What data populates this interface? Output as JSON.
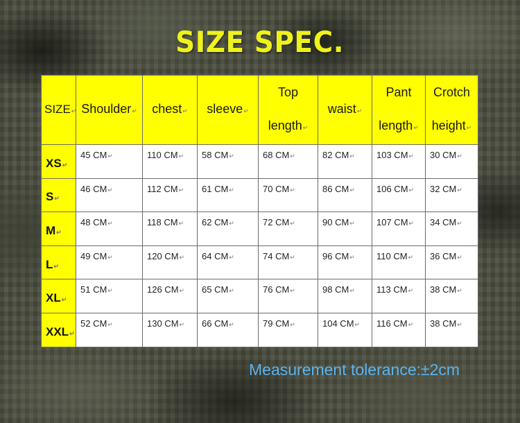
{
  "title": "SIZE SPEC.",
  "columns": [
    {
      "line1": "SIZE",
      "line2": ""
    },
    {
      "line1": "Shoulder",
      "line2": ""
    },
    {
      "line1": "chest",
      "line2": ""
    },
    {
      "line1": "sleeve",
      "line2": ""
    },
    {
      "line1": "Top",
      "line2": "length"
    },
    {
      "line1": "waist",
      "line2": ""
    },
    {
      "line1": "Pant",
      "line2": "length"
    },
    {
      "line1": "Crotch",
      "line2": "height"
    }
  ],
  "rows": [
    {
      "size": "XS",
      "values": [
        "45 CM",
        "110 CM",
        "58 CM",
        "68 CM",
        "82 CM",
        "103 CM",
        "30 CM"
      ]
    },
    {
      "size": "S",
      "values": [
        "46 CM",
        "112 CM",
        "61 CM",
        "70 CM",
        "86 CM",
        "106 CM",
        "32 CM"
      ]
    },
    {
      "size": "M",
      "values": [
        "48 CM",
        "118 CM",
        "62 CM",
        "72 CM",
        "90 CM",
        "107 CM",
        "34 CM"
      ]
    },
    {
      "size": "L",
      "values": [
        "49 CM",
        "120 CM",
        "64 CM",
        "74 CM",
        "96 CM",
        "110 CM",
        "36 CM"
      ]
    },
    {
      "size": "XL",
      "values": [
        "51 CM",
        "126 CM",
        "65 CM",
        "76 CM",
        "98 CM",
        "113 CM",
        "38 CM"
      ]
    },
    {
      "size": "XXL",
      "values": [
        "52 CM",
        "130 CM",
        "66 CM",
        "79 CM",
        "104 CM",
        "116 CM",
        "38 CM"
      ]
    }
  ],
  "tolerance": "Measurement tolerance:±2cm",
  "colors": {
    "title": "#eef21c",
    "header_bg": "#ffff00",
    "tolerance": "#5ab4f0"
  }
}
